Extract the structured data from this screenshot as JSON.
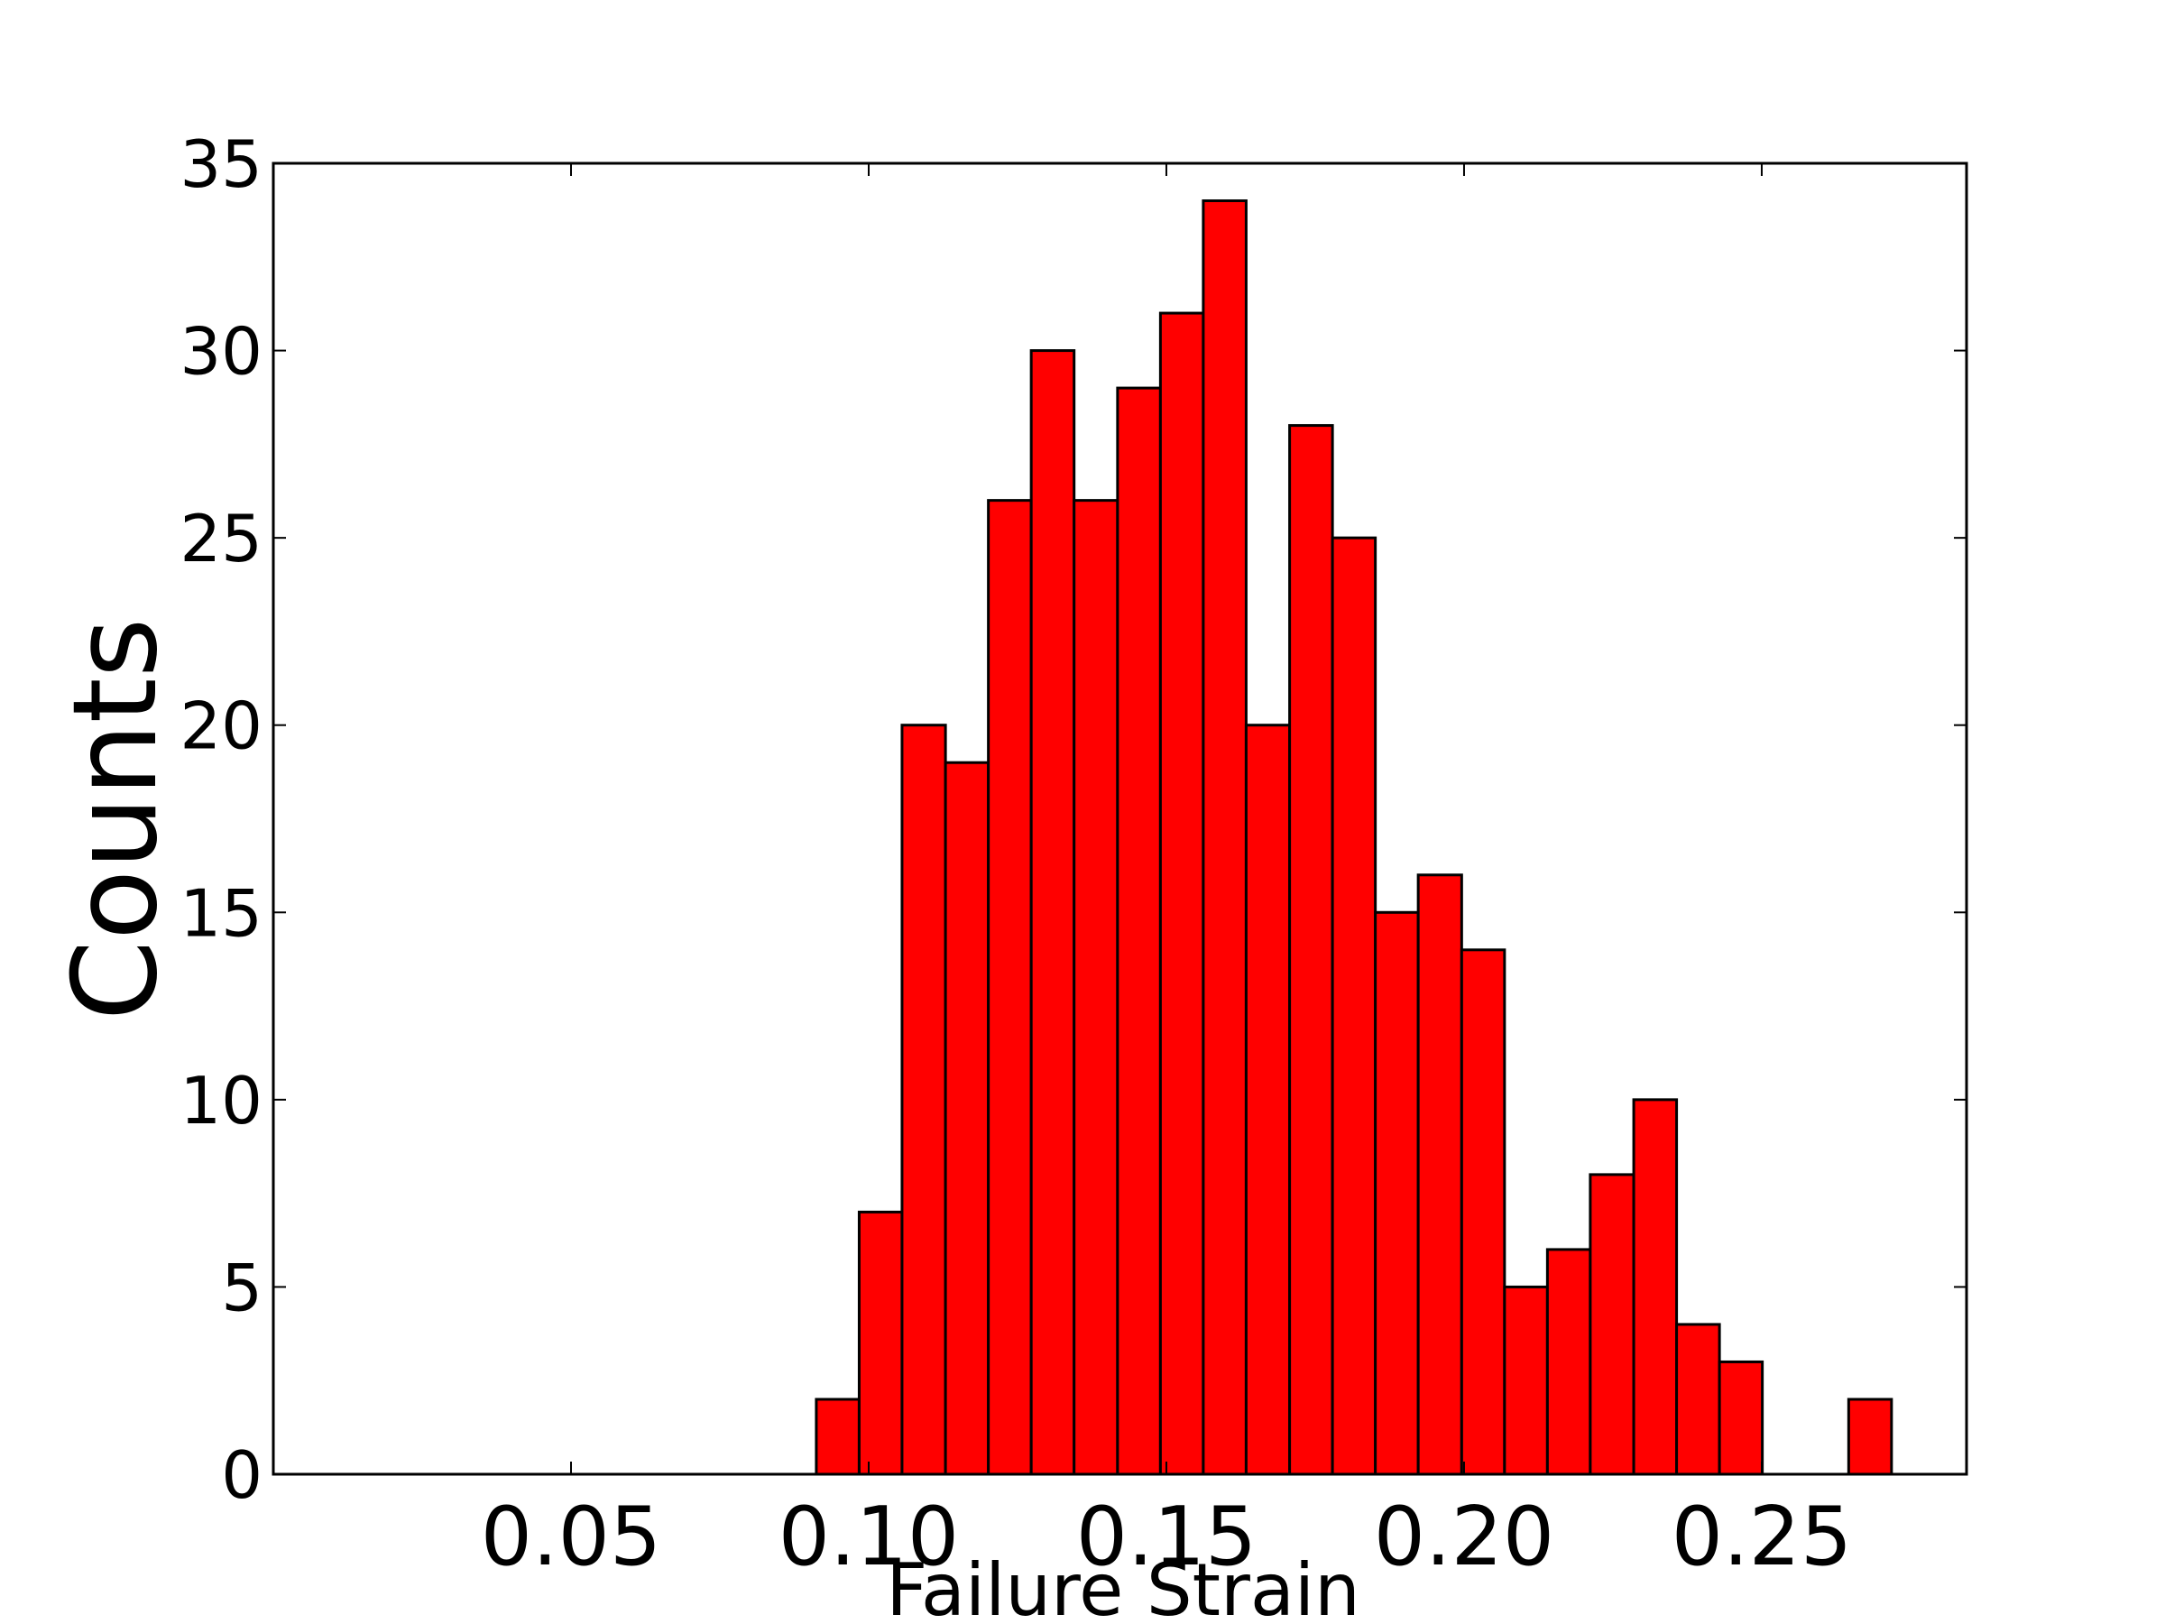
{
  "chart_data": {
    "type": "histogram",
    "xlabel": "Failure Strain",
    "ylabel": "Counts",
    "bins": [
      0.0912,
      0.0984,
      0.1056,
      0.1129,
      0.1201,
      0.1273,
      0.1345,
      0.1418,
      0.149,
      0.1562,
      0.1634,
      0.1707,
      0.1779,
      0.1851,
      0.1923,
      0.1996,
      0.2068,
      0.214,
      0.2212,
      0.2285,
      0.2357,
      0.2429,
      0.2501,
      0.2574,
      0.2646,
      0.2718
    ],
    "values": [
      2,
      7,
      20,
      19,
      26,
      30,
      26,
      29,
      31,
      34,
      20,
      28,
      25,
      15,
      16,
      14,
      5,
      6,
      8,
      10,
      4,
      3,
      0,
      0,
      2
    ],
    "color": "#ff0000",
    "xlim": [
      0.0,
      0.2844
    ],
    "ylim": [
      0,
      35
    ],
    "xticks": [
      {
        "value": 0.05,
        "label": "0.05"
      },
      {
        "value": 0.1,
        "label": "0.10"
      },
      {
        "value": 0.15,
        "label": "0.15"
      },
      {
        "value": 0.2,
        "label": "0.20"
      },
      {
        "value": 0.25,
        "label": "0.25"
      }
    ],
    "yticks": [
      0,
      5,
      10,
      15,
      20,
      25,
      30,
      35
    ]
  }
}
